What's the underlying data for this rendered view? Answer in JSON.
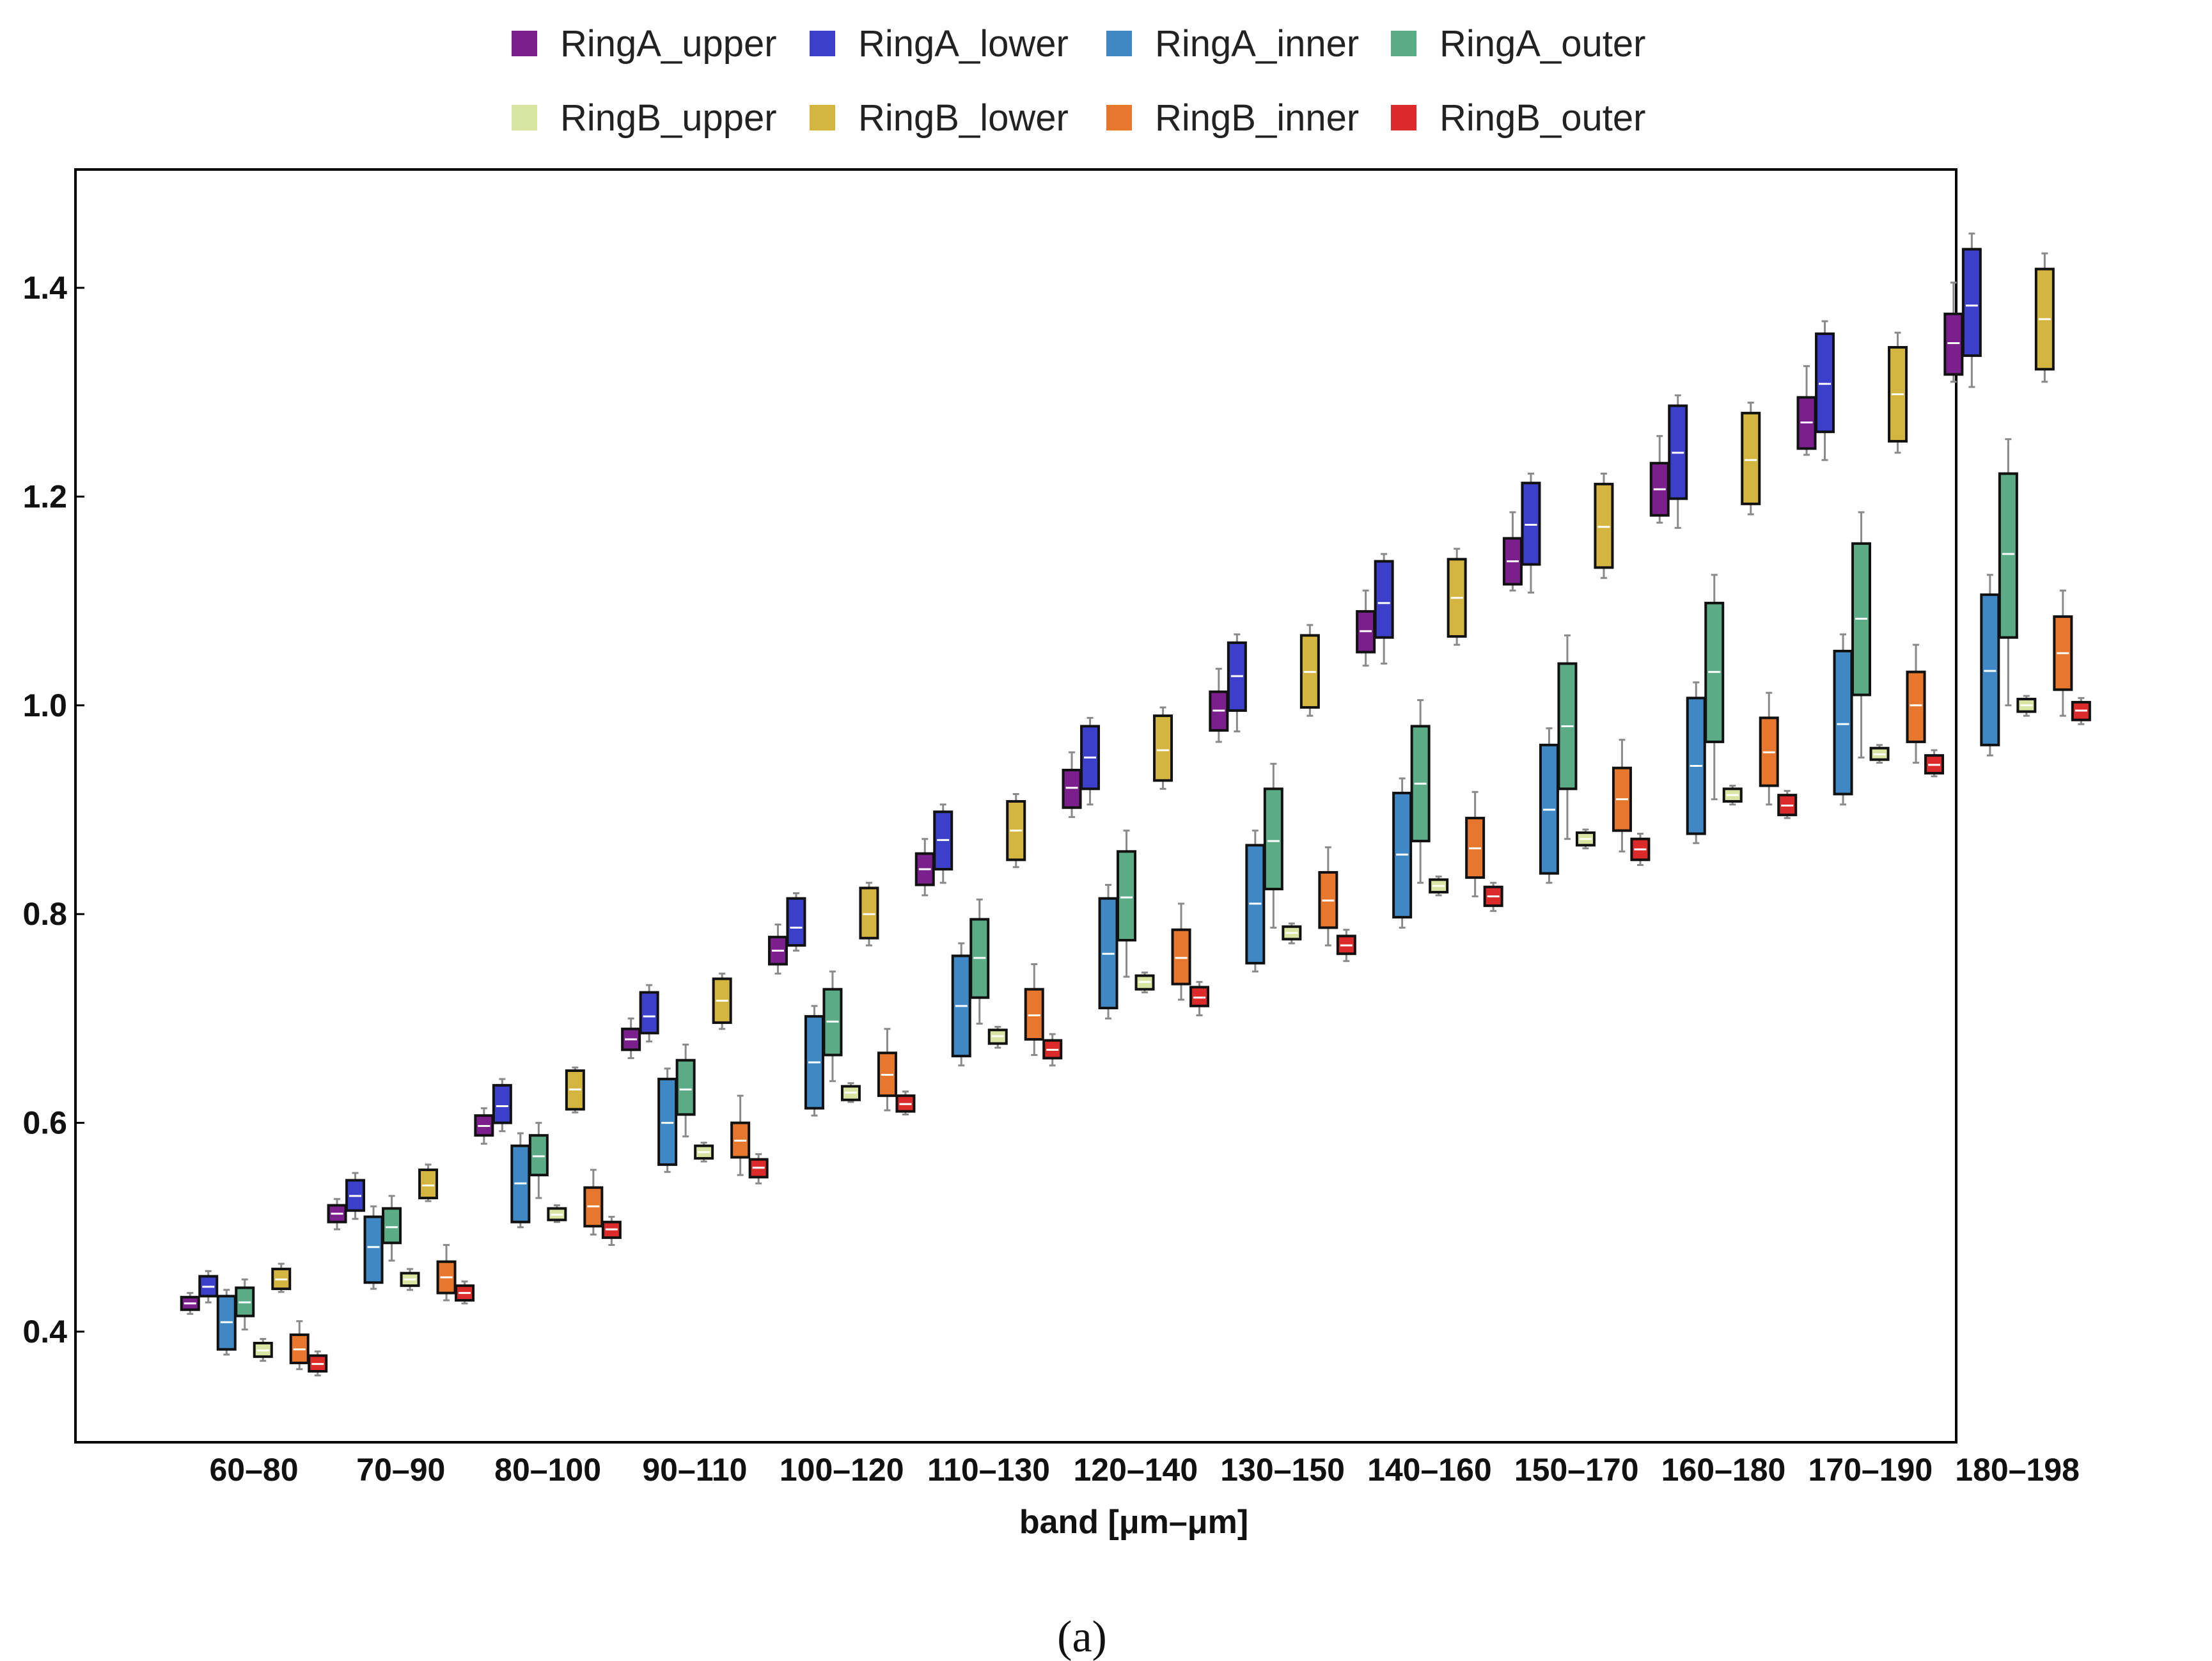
{
  "chart_data": {
    "type": "box",
    "title": "",
    "xlabel": "band [μm–μm]",
    "ylabel": "",
    "caption": "(a)",
    "ylim": [
      0.3,
      1.52
    ],
    "yticks": [
      0.4,
      0.6,
      0.8,
      1.0,
      1.2,
      1.4
    ],
    "ytick_labels": [
      "0.4",
      "0.6",
      "0.8",
      "1.0",
      "1.2",
      "1.4"
    ],
    "grid": false,
    "legend_position": "top",
    "categories": [
      "60–80",
      "70–90",
      "80–100",
      "90–110",
      "100–120",
      "110–130",
      "120–140",
      "130–150",
      "140–160",
      "150–170",
      "160–180",
      "170–190",
      "180–198"
    ],
    "series": [
      {
        "name": "RingA_upper",
        "color": "#7b1f8c",
        "stats": [
          [
            0.417,
            0.421,
            0.427,
            0.433,
            0.437
          ],
          [
            0.498,
            0.505,
            0.513,
            0.521,
            0.527
          ],
          [
            0.58,
            0.588,
            0.597,
            0.607,
            0.614
          ],
          [
            0.662,
            0.67,
            0.68,
            0.69,
            0.7
          ],
          [
            0.743,
            0.752,
            0.765,
            0.778,
            0.79
          ],
          [
            0.818,
            0.828,
            0.843,
            0.858,
            0.872
          ],
          [
            0.893,
            0.902,
            0.921,
            0.938,
            0.955
          ],
          [
            0.965,
            0.976,
            0.995,
            1.013,
            1.035
          ],
          [
            1.038,
            1.051,
            1.071,
            1.09,
            1.11
          ],
          [
            1.11,
            1.116,
            1.138,
            1.16,
            1.185
          ],
          [
            1.175,
            1.182,
            1.207,
            1.232,
            1.258
          ],
          [
            1.24,
            1.246,
            1.271,
            1.295,
            1.325
          ],
          [
            1.31,
            1.317,
            1.347,
            1.375,
            1.405
          ]
        ]
      },
      {
        "name": "RingA_lower",
        "color": "#3b3fc9",
        "stats": [
          [
            0.428,
            0.434,
            0.443,
            0.453,
            0.458
          ],
          [
            0.508,
            0.516,
            0.53,
            0.545,
            0.552
          ],
          [
            0.592,
            0.6,
            0.616,
            0.636,
            0.642
          ],
          [
            0.678,
            0.686,
            0.702,
            0.725,
            0.732
          ],
          [
            0.765,
            0.77,
            0.787,
            0.815,
            0.82
          ],
          [
            0.83,
            0.843,
            0.871,
            0.898,
            0.905
          ],
          [
            0.905,
            0.92,
            0.95,
            0.98,
            0.988
          ],
          [
            0.975,
            0.995,
            1.028,
            1.06,
            1.068
          ],
          [
            1.04,
            1.065,
            1.098,
            1.138,
            1.145
          ],
          [
            1.108,
            1.135,
            1.173,
            1.213,
            1.222
          ],
          [
            1.17,
            1.198,
            1.242,
            1.287,
            1.297
          ],
          [
            1.235,
            1.262,
            1.308,
            1.356,
            1.368
          ],
          [
            1.305,
            1.335,
            1.383,
            1.437,
            1.452
          ]
        ]
      },
      {
        "name": "RingA_inner",
        "color": "#3f88c5",
        "stats": [
          [
            0.378,
            0.383,
            0.409,
            0.434,
            0.44
          ],
          [
            0.441,
            0.447,
            0.481,
            0.51,
            0.52
          ],
          [
            0.5,
            0.505,
            0.542,
            0.578,
            0.59
          ],
          [
            0.553,
            0.56,
            0.6,
            0.642,
            0.652
          ],
          [
            0.607,
            0.614,
            0.658,
            0.702,
            0.712
          ],
          [
            0.655,
            0.664,
            0.712,
            0.76,
            0.772
          ],
          [
            0.7,
            0.71,
            0.762,
            0.815,
            0.828
          ],
          [
            0.745,
            0.753,
            0.81,
            0.866,
            0.88
          ],
          [
            0.787,
            0.797,
            0.857,
            0.916,
            0.93
          ],
          [
            0.83,
            0.839,
            0.9,
            0.962,
            0.978
          ],
          [
            0.868,
            0.877,
            0.942,
            1.007,
            1.022
          ],
          [
            0.905,
            0.915,
            0.982,
            1.052,
            1.068
          ],
          [
            0.952,
            0.962,
            1.033,
            1.106,
            1.125
          ]
        ]
      },
      {
        "name": "RingA_outer",
        "color": "#5aab86",
        "stats": [
          [
            0.402,
            0.415,
            0.428,
            0.442,
            0.45
          ],
          [
            0.468,
            0.485,
            0.5,
            0.518,
            0.53
          ],
          [
            0.528,
            0.55,
            0.568,
            0.588,
            0.6
          ],
          [
            0.587,
            0.608,
            0.632,
            0.66,
            0.675
          ],
          [
            0.64,
            0.665,
            0.697,
            0.728,
            0.745
          ],
          [
            0.695,
            0.72,
            0.758,
            0.795,
            0.814
          ],
          [
            0.74,
            0.775,
            0.816,
            0.86,
            0.88
          ],
          [
            0.787,
            0.824,
            0.87,
            0.92,
            0.944
          ],
          [
            0.83,
            0.87,
            0.925,
            0.98,
            1.005
          ],
          [
            0.872,
            0.92,
            0.98,
            1.04,
            1.067
          ],
          [
            0.91,
            0.965,
            1.032,
            1.098,
            1.125
          ],
          [
            0.95,
            1.01,
            1.083,
            1.155,
            1.185
          ],
          [
            1.0,
            1.065,
            1.145,
            1.222,
            1.255
          ]
        ]
      },
      {
        "name": "RingB_upper",
        "color": "#d9e6a3",
        "stats": [
          [
            0.372,
            0.376,
            0.382,
            0.389,
            0.393
          ],
          [
            0.44,
            0.444,
            0.45,
            0.456,
            0.46
          ],
          [
            0.505,
            0.507,
            0.512,
            0.518,
            0.521
          ],
          [
            0.563,
            0.566,
            0.572,
            0.578,
            0.581
          ],
          [
            0.62,
            0.622,
            0.629,
            0.635,
            0.638
          ],
          [
            0.672,
            0.676,
            0.683,
            0.689,
            0.692
          ],
          [
            0.725,
            0.728,
            0.735,
            0.741,
            0.744
          ],
          [
            0.772,
            0.776,
            0.782,
            0.788,
            0.791
          ],
          [
            0.818,
            0.821,
            0.827,
            0.833,
            0.836
          ],
          [
            0.863,
            0.866,
            0.872,
            0.878,
            0.881
          ],
          [
            0.905,
            0.908,
            0.914,
            0.92,
            0.923
          ],
          [
            0.945,
            0.948,
            0.953,
            0.959,
            0.962
          ],
          [
            0.99,
            0.994,
            1.0,
            1.006,
            1.009
          ]
        ]
      },
      {
        "name": "RingB_lower",
        "color": "#d4b53f",
        "stats": [
          [
            0.438,
            0.441,
            0.45,
            0.46,
            0.465
          ],
          [
            0.525,
            0.528,
            0.54,
            0.555,
            0.56
          ],
          [
            0.61,
            0.613,
            0.632,
            0.65,
            0.653
          ],
          [
            0.69,
            0.696,
            0.717,
            0.738,
            0.743
          ],
          [
            0.77,
            0.777,
            0.8,
            0.825,
            0.83
          ],
          [
            0.845,
            0.852,
            0.88,
            0.908,
            0.915
          ],
          [
            0.92,
            0.928,
            0.957,
            0.99,
            0.998
          ],
          [
            0.99,
            0.998,
            1.032,
            1.067,
            1.077
          ],
          [
            1.058,
            1.066,
            1.103,
            1.14,
            1.15
          ],
          [
            1.122,
            1.132,
            1.171,
            1.212,
            1.222
          ],
          [
            1.183,
            1.193,
            1.235,
            1.28,
            1.29
          ],
          [
            1.242,
            1.253,
            1.298,
            1.343,
            1.357
          ],
          [
            1.31,
            1.322,
            1.37,
            1.418,
            1.433
          ]
        ]
      },
      {
        "name": "RingB_inner",
        "color": "#e8772e",
        "stats": [
          [
            0.364,
            0.37,
            0.383,
            0.397,
            0.41
          ],
          [
            0.43,
            0.437,
            0.452,
            0.467,
            0.483
          ],
          [
            0.493,
            0.501,
            0.52,
            0.538,
            0.555
          ],
          [
            0.55,
            0.567,
            0.583,
            0.6,
            0.626
          ],
          [
            0.612,
            0.626,
            0.646,
            0.667,
            0.69
          ],
          [
            0.665,
            0.68,
            0.703,
            0.728,
            0.752
          ],
          [
            0.718,
            0.733,
            0.758,
            0.785,
            0.81
          ],
          [
            0.77,
            0.787,
            0.813,
            0.84,
            0.864
          ],
          [
            0.817,
            0.835,
            0.863,
            0.892,
            0.917
          ],
          [
            0.86,
            0.88,
            0.91,
            0.94,
            0.967
          ],
          [
            0.905,
            0.923,
            0.955,
            0.988,
            1.012
          ],
          [
            0.945,
            0.965,
            1.0,
            1.032,
            1.058
          ],
          [
            0.99,
            1.015,
            1.05,
            1.085,
            1.11
          ]
        ]
      },
      {
        "name": "RingB_outer",
        "color": "#dc2a2a",
        "stats": [
          [
            0.358,
            0.362,
            0.369,
            0.377,
            0.381
          ],
          [
            0.427,
            0.43,
            0.437,
            0.444,
            0.448
          ],
          [
            0.483,
            0.49,
            0.498,
            0.505,
            0.51
          ],
          [
            0.542,
            0.548,
            0.557,
            0.565,
            0.57
          ],
          [
            0.608,
            0.611,
            0.618,
            0.626,
            0.63
          ],
          [
            0.655,
            0.662,
            0.67,
            0.679,
            0.685
          ],
          [
            0.703,
            0.712,
            0.72,
            0.73,
            0.735
          ],
          [
            0.755,
            0.762,
            0.77,
            0.779,
            0.785
          ],
          [
            0.803,
            0.808,
            0.817,
            0.826,
            0.83
          ],
          [
            0.847,
            0.852,
            0.862,
            0.872,
            0.877
          ],
          [
            0.892,
            0.895,
            0.904,
            0.914,
            0.918
          ],
          [
            0.932,
            0.935,
            0.943,
            0.952,
            0.957
          ],
          [
            0.982,
            0.986,
            0.995,
            1.003,
            1.007
          ]
        ]
      }
    ]
  }
}
